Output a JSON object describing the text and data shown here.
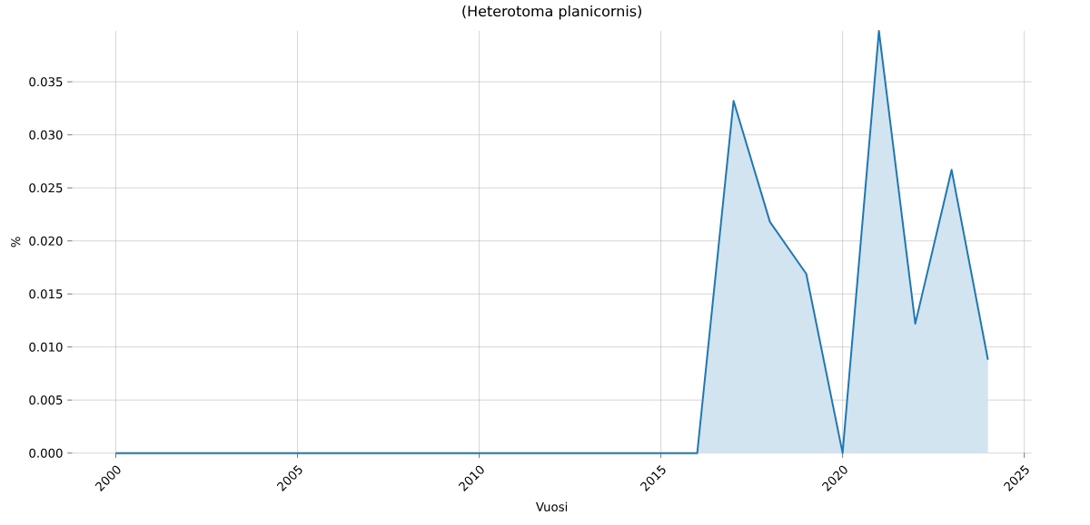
{
  "chart_data": {
    "type": "area",
    "title": "(Heterotoma planicornis)",
    "xlabel": "Vuosi",
    "ylabel": "%",
    "x": [
      2000,
      2001,
      2002,
      2003,
      2004,
      2005,
      2006,
      2007,
      2008,
      2009,
      2010,
      2011,
      2012,
      2013,
      2014,
      2015,
      2016,
      2017,
      2018,
      2019,
      2020,
      2021,
      2022,
      2023,
      2024
    ],
    "series": [
      {
        "color": "#1f77b4",
        "values": [
          0,
          0,
          0,
          0,
          0,
          0,
          0,
          0,
          0,
          0,
          0,
          0,
          0,
          0,
          0,
          0,
          0,
          0.0332,
          0.0218,
          0.0169,
          0,
          0.0398,
          0.0122,
          0.0267,
          0.0088
        ]
      }
    ],
    "xlim": [
      1998.8,
      2025.2
    ],
    "ylim": [
      0,
      0.0398
    ],
    "xticks": [
      2000,
      2005,
      2010,
      2015,
      2020,
      2025
    ],
    "yticks": [
      {
        "value": 0,
        "label": "0.000"
      },
      {
        "value": 0.005,
        "label": "0.005"
      },
      {
        "value": 0.01,
        "label": "0.010"
      },
      {
        "value": 0.015,
        "label": "0.015"
      },
      {
        "value": 0.02,
        "label": "0.020"
      },
      {
        "value": 0.025,
        "label": "0.025"
      },
      {
        "value": 0.03,
        "label": "0.030"
      },
      {
        "value": 0.035,
        "label": "0.035"
      }
    ],
    "grid": true
  }
}
